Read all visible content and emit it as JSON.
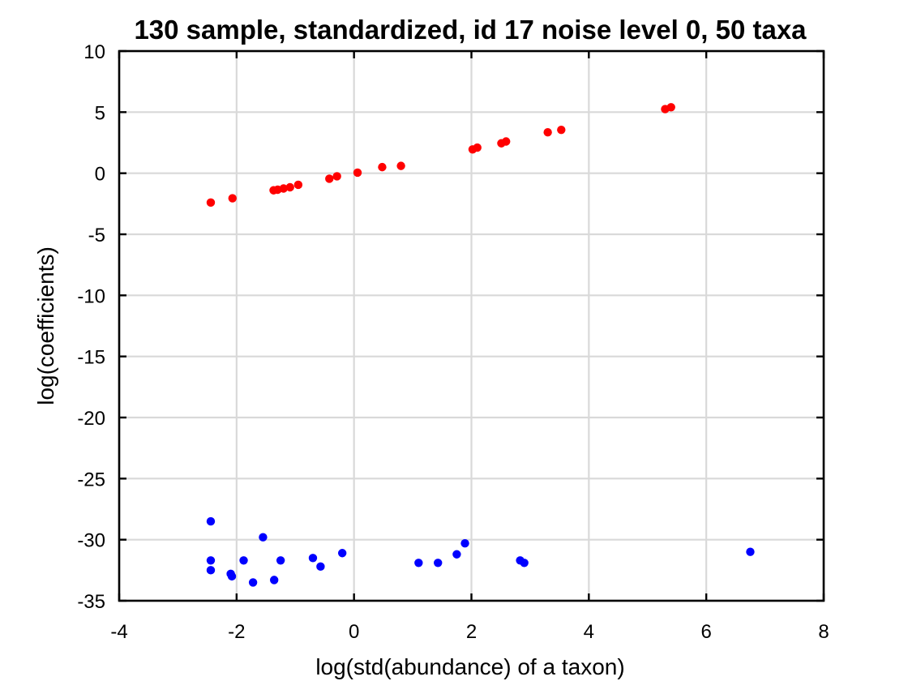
{
  "chart_data": {
    "type": "scatter",
    "title": "130 sample, standardized, id 17 noise level 0, 50 taxa",
    "xlabel": "log(std(abundance) of a taxon)",
    "ylabel": "log(coefficients)",
    "xlim": [
      -4,
      8
    ],
    "ylim": [
      -35,
      10
    ],
    "xticks": [
      -4,
      -2,
      0,
      2,
      4,
      6,
      8
    ],
    "yticks": [
      -35,
      -30,
      -25,
      -20,
      -15,
      -10,
      -5,
      0,
      5,
      10
    ],
    "xtick_labels": [
      "-4",
      "-2",
      "0",
      "2",
      "4",
      "6",
      "8"
    ],
    "ytick_labels": [
      "-35",
      "-30",
      "-25",
      "-20",
      "-15",
      "-10",
      "-5",
      "0",
      "5",
      "10"
    ],
    "grid": true,
    "series": [
      {
        "color": "#ff0000",
        "points": [
          [
            -2.44,
            -2.4
          ],
          [
            -2.07,
            -2.05
          ],
          [
            -1.37,
            -1.4
          ],
          [
            -1.3,
            -1.35
          ],
          [
            -1.2,
            -1.25
          ],
          [
            -1.09,
            -1.15
          ],
          [
            -0.95,
            -0.95
          ],
          [
            -0.42,
            -0.45
          ],
          [
            -0.29,
            -0.25
          ],
          [
            0.06,
            0.05
          ],
          [
            0.48,
            0.5
          ],
          [
            0.8,
            0.6
          ],
          [
            2.02,
            1.95
          ],
          [
            2.1,
            2.1
          ],
          [
            2.51,
            2.45
          ],
          [
            2.59,
            2.6
          ],
          [
            3.3,
            3.35
          ],
          [
            3.53,
            3.55
          ],
          [
            5.3,
            5.25
          ],
          [
            5.4,
            5.4
          ]
        ]
      },
      {
        "color": "#0000ff",
        "points": [
          [
            -2.44,
            -28.5
          ],
          [
            -2.44,
            -31.7
          ],
          [
            -2.44,
            -32.5
          ],
          [
            -2.1,
            -32.8
          ],
          [
            -2.08,
            -33.0
          ],
          [
            -1.88,
            -31.7
          ],
          [
            -1.72,
            -33.5
          ],
          [
            -1.55,
            -29.8
          ],
          [
            -1.36,
            -33.3
          ],
          [
            -1.25,
            -31.7
          ],
          [
            -0.7,
            -31.5
          ],
          [
            -0.57,
            -32.2
          ],
          [
            -0.2,
            -31.1
          ],
          [
            1.1,
            -31.9
          ],
          [
            1.43,
            -31.9
          ],
          [
            1.75,
            -31.2
          ],
          [
            1.89,
            -30.3
          ],
          [
            2.83,
            -31.7
          ],
          [
            2.9,
            -31.9
          ],
          [
            6.75,
            -31.0
          ]
        ]
      }
    ]
  }
}
